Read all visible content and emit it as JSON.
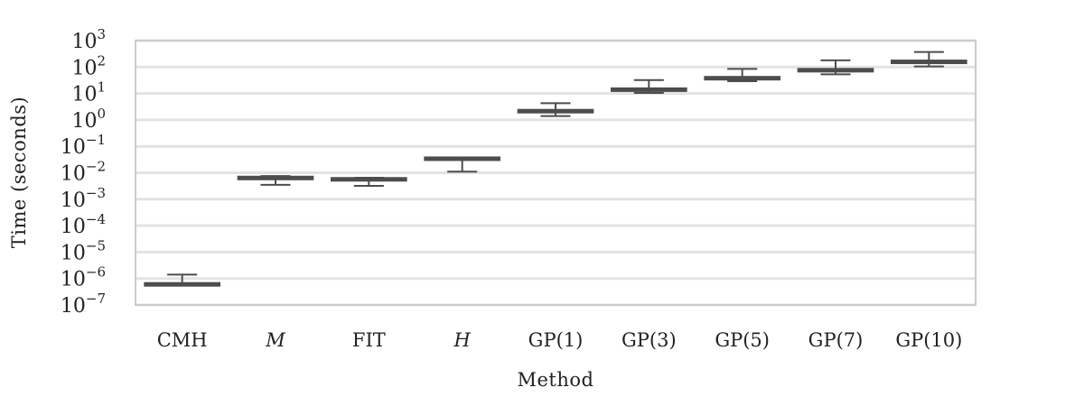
{
  "chart_data": {
    "type": "box",
    "xlabel": "Method",
    "ylabel": "Time (seconds)",
    "yscale": "log",
    "ylim_exp": [
      -7,
      3
    ],
    "y_tick_exponents": [
      -7,
      -6,
      -5,
      -4,
      -3,
      -2,
      -1,
      0,
      1,
      2,
      3
    ],
    "y_tick_base": "10",
    "grid": "horizontal",
    "colors": {
      "box": "#4d4d4d",
      "grid": "#e3e3e3",
      "frame": "#cccccc"
    },
    "categories": [
      {
        "label": "CMH",
        "italic": false,
        "min": 6e-07,
        "q1": 6e-07,
        "median": 6e-07,
        "q3": 6e-07,
        "max": 1.4e-06
      },
      {
        "label": "M",
        "italic": true,
        "min": 0.0035,
        "q1": 0.0062,
        "median": 0.0063,
        "q3": 0.0065,
        "max": 0.0075
      },
      {
        "label": "FIT",
        "italic": false,
        "min": 0.0032,
        "q1": 0.0055,
        "median": 0.0056,
        "q3": 0.0058,
        "max": 0.0065
      },
      {
        "label": "H",
        "italic": true,
        "min": 0.011,
        "q1": 0.033,
        "median": 0.034,
        "q3": 0.035,
        "max": 0.038
      },
      {
        "label": "GP(1)",
        "italic": false,
        "min": 1.4,
        "q1": 1.95,
        "median": 2.1,
        "q3": 2.35,
        "max": 4.3
      },
      {
        "label": "GP(3)",
        "italic": false,
        "min": 10.5,
        "q1": 12.5,
        "median": 13.5,
        "q3": 15.5,
        "max": 32
      },
      {
        "label": "GP(5)",
        "italic": false,
        "min": 29,
        "q1": 34,
        "median": 37,
        "q3": 42,
        "max": 85
      },
      {
        "label": "GP(7)",
        "italic": false,
        "min": 53,
        "q1": 70,
        "median": 75,
        "q3": 82,
        "max": 180
      },
      {
        "label": "GP(10)",
        "italic": false,
        "min": 105,
        "q1": 145,
        "median": 155,
        "q3": 170,
        "max": 370
      }
    ]
  }
}
